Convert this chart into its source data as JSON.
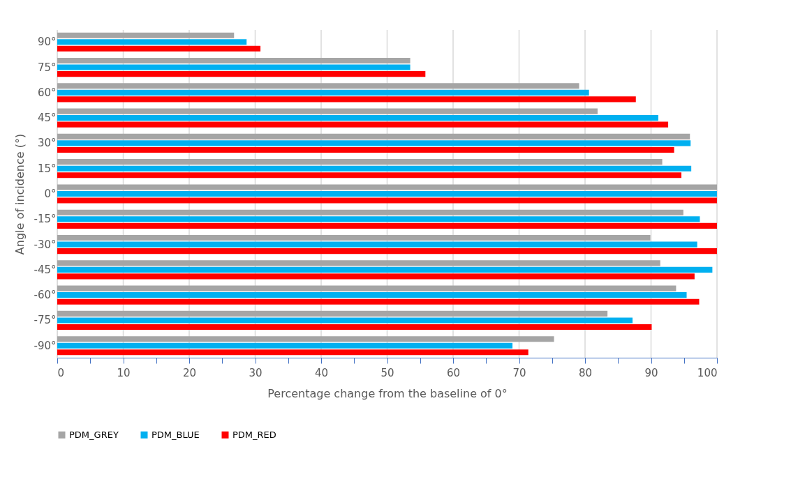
{
  "chart_data": {
    "type": "bar",
    "orientation": "horizontal",
    "xlabel": "Percentage  change from the baseline of 0°",
    "ylabel": "Angle of incidence (°)",
    "categories": [
      "90°",
      "75°",
      "60°",
      "45°",
      "30°",
      "15°",
      "0°",
      "-15°",
      "-30°",
      "-45°",
      "-60°",
      "-75°",
      "-90°"
    ],
    "series": [
      {
        "name": "PDM_GREY",
        "color": "#a5a5a5",
        "values": [
          26.8,
          53.5,
          79.1,
          81.9,
          95.9,
          91.7,
          100,
          94.9,
          89.9,
          91.4,
          93.8,
          83.4,
          75.3
        ]
      },
      {
        "name": "PDM_BLUE",
        "color": "#00b0f0",
        "values": [
          28.7,
          53.5,
          80.6,
          91.1,
          96.0,
          96.1,
          100,
          97.4,
          97.0,
          99.3,
          95.4,
          87.2,
          69.0
        ]
      },
      {
        "name": "PDM_RED",
        "color": "#ff0000",
        "values": [
          30.8,
          55.8,
          87.7,
          92.6,
          93.5,
          94.6,
          100,
          100,
          100,
          96.6,
          97.3,
          90.1,
          71.4
        ]
      }
    ],
    "xlim": [
      0,
      100
    ],
    "xticks": [
      0,
      {
        "value": 5,
        "label": null
      },
      10,
      {
        "value": 15,
        "label": null
      },
      20,
      {
        "value": 25,
        "label": null
      },
      30,
      {
        "value": 35,
        "label": null
      },
      40,
      {
        "value": 45,
        "label": null
      },
      50,
      {
        "value": 55,
        "label": null
      },
      60,
      {
        "value": 65,
        "label": null
      },
      70,
      {
        "value": 75,
        "label": null
      },
      80,
      {
        "value": 85,
        "label": null
      },
      90,
      {
        "value": 95,
        "label": null
      },
      100
    ],
    "grid": "x",
    "legend": "bottom"
  }
}
